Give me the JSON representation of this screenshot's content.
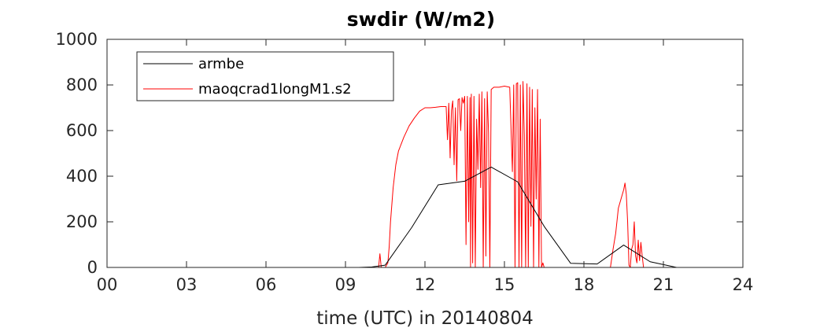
{
  "chart_data": {
    "type": "line",
    "title": "swdir  (W/m2)",
    "xlabel": "time (UTC) in 20140804",
    "ylabel": "",
    "xlim": [
      0,
      24
    ],
    "ylim": [
      0,
      1000
    ],
    "xticks": [
      0,
      3,
      6,
      9,
      12,
      15,
      18,
      21,
      24
    ],
    "xtick_labels": [
      "00",
      "03",
      "06",
      "09",
      "12",
      "15",
      "18",
      "21",
      "24"
    ],
    "yticks": [
      0,
      200,
      400,
      600,
      800,
      1000
    ],
    "ytick_labels": [
      "0",
      "200",
      "400",
      "600",
      "800",
      "1000"
    ],
    "grid": false,
    "legend_position": "top-left",
    "series": [
      {
        "name": "armbe",
        "color": "#000000",
        "x": [
          0,
          9.5,
          10,
          10.5,
          11.5,
          12.5,
          13.5,
          14.5,
          15.5,
          16.5,
          17.5,
          18.5,
          19.5,
          20.5,
          21.5,
          24
        ],
        "y": [
          0,
          0,
          2,
          10,
          175,
          362,
          378,
          440,
          375,
          180,
          18,
          15,
          98,
          25,
          0,
          0
        ]
      },
      {
        "name": "maoqcrad1longM1.s2",
        "color": "#ff0000",
        "x": [
          0,
          10.0,
          10.1,
          10.15,
          10.2,
          10.25,
          10.3,
          10.35,
          10.4,
          10.45,
          10.5,
          10.6,
          10.65,
          10.7,
          10.8,
          10.9,
          11.0,
          11.2,
          11.4,
          11.6,
          11.8,
          12.0,
          12.2,
          12.4,
          12.6,
          12.8,
          12.85,
          12.9,
          12.95,
          13.0,
          13.05,
          13.1,
          13.15,
          13.2,
          13.25,
          13.3,
          13.35,
          13.4,
          13.45,
          13.5,
          13.55,
          13.6,
          13.65,
          13.7,
          13.72,
          13.75,
          13.8,
          13.85,
          13.9,
          13.95,
          14.0,
          14.05,
          14.1,
          14.15,
          14.2,
          14.25,
          14.3,
          14.35,
          14.4,
          14.45,
          14.5,
          14.6,
          14.8,
          15.0,
          15.2,
          15.3,
          15.35,
          15.4,
          15.45,
          15.5,
          15.55,
          15.6,
          15.65,
          15.7,
          15.75,
          15.8,
          15.85,
          15.9,
          15.95,
          16.0,
          16.05,
          16.1,
          16.15,
          16.2,
          16.25,
          16.3,
          16.35,
          16.4,
          16.45,
          16.5,
          16.55,
          16.6,
          19.0,
          19.1,
          19.2,
          19.3,
          19.4,
          19.5,
          19.55,
          19.6,
          19.65,
          19.7,
          19.75,
          19.8,
          19.85,
          19.9,
          19.95,
          20.0,
          20.05,
          20.1,
          20.15,
          20.2,
          20.25,
          20.3,
          24
        ],
        "y": [
          0,
          0,
          0,
          0,
          0,
          0,
          60,
          0,
          0,
          0,
          0,
          20,
          90,
          200,
          350,
          450,
          510,
          570,
          620,
          655,
          685,
          700,
          700,
          702,
          705,
          705,
          560,
          720,
          480,
          690,
          730,
          450,
          700,
          380,
          735,
          740,
          600,
          745,
          720,
          750,
          100,
          750,
          200,
          745,
          0,
          760,
          20,
          750,
          0,
          650,
          430,
          760,
          350,
          770,
          0,
          740,
          50,
          770,
          590,
          0,
          780,
          790,
          790,
          795,
          790,
          420,
          800,
          0,
          805,
          810,
          0,
          800,
          0,
          815,
          580,
          0,
          805,
          0,
          790,
          180,
          780,
          0,
          700,
          300,
          780,
          0,
          650,
          0,
          20,
          0,
          0,
          0,
          0,
          80,
          150,
          260,
          300,
          340,
          370,
          320,
          200,
          10,
          0,
          80,
          100,
          200,
          50,
          20,
          120,
          30,
          110,
          50,
          0,
          0,
          0
        ]
      }
    ]
  }
}
